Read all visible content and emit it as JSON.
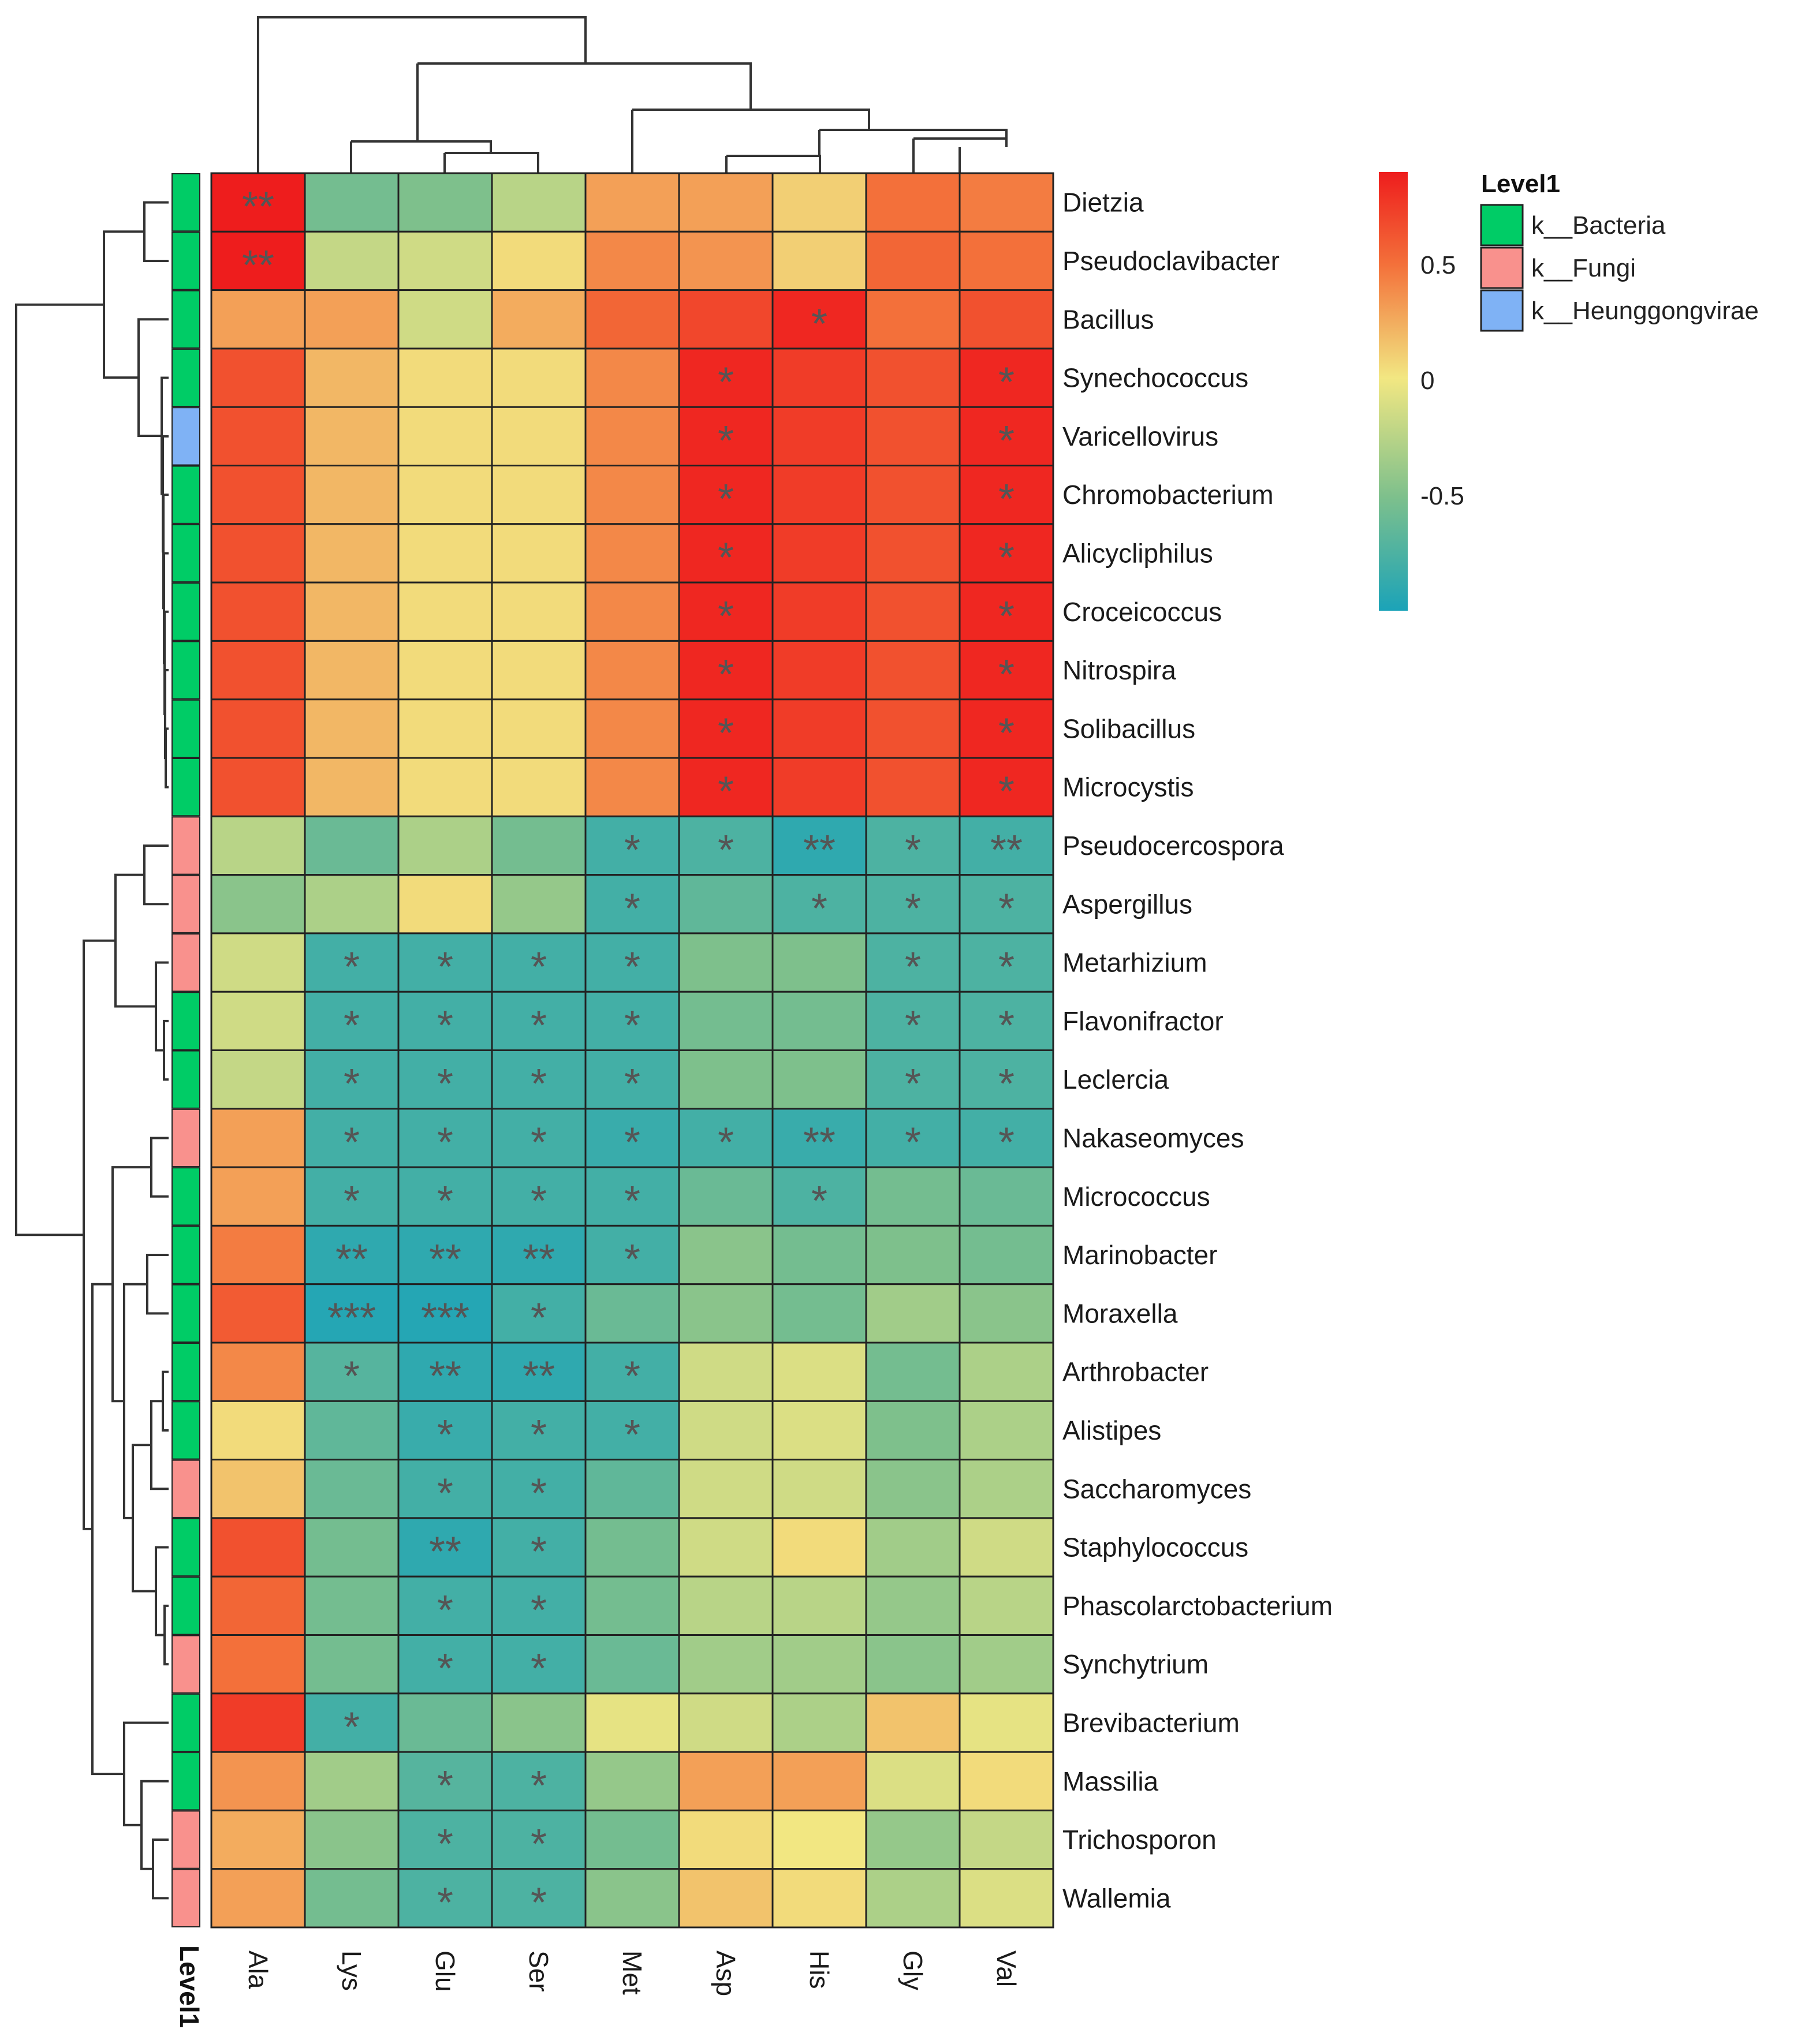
{
  "chart_data": {
    "type": "heatmap",
    "columns": [
      "Ala",
      "Lys",
      "Glu",
      "Ser",
      "Met",
      "Asp",
      "His",
      "Gly",
      "Val"
    ],
    "rows": [
      {
        "name": "Dietzia",
        "level": "k__Bacteria",
        "values": [
          0.9,
          -0.55,
          -0.5,
          -0.25,
          0.3,
          0.3,
          0.1,
          0.5,
          0.45
        ],
        "sig": [
          "**",
          "",
          "",
          "",
          "",
          "",
          "",
          "",
          ""
        ]
      },
      {
        "name": "Pseudoclavibacter",
        "level": "k__Bacteria",
        "values": [
          0.9,
          -0.2,
          -0.15,
          0.05,
          0.4,
          0.35,
          0.1,
          0.55,
          0.5
        ],
        "sig": [
          "**",
          "",
          "",
          "",
          "",
          "",
          "",
          "",
          ""
        ]
      },
      {
        "name": "Bacillus",
        "level": "k__Bacteria",
        "values": [
          0.3,
          0.3,
          -0.15,
          0.25,
          0.55,
          0.7,
          0.85,
          0.5,
          0.65
        ],
        "sig": [
          "",
          "",
          "",
          "",
          "",
          "",
          "*",
          "",
          ""
        ]
      },
      {
        "name": "Synechococcus",
        "level": "k__Bacteria",
        "values": [
          0.65,
          0.2,
          0.05,
          0.05,
          0.4,
          0.85,
          0.75,
          0.65,
          0.85
        ],
        "sig": [
          "",
          "",
          "",
          "",
          "",
          "*",
          "",
          "",
          "*"
        ]
      },
      {
        "name": "Varicellovirus",
        "level": "k__Heunggongvirae",
        "values": [
          0.65,
          0.2,
          0.05,
          0.05,
          0.4,
          0.85,
          0.75,
          0.65,
          0.85
        ],
        "sig": [
          "",
          "",
          "",
          "",
          "",
          "*",
          "",
          "",
          "*"
        ]
      },
      {
        "name": "Chromobacterium",
        "level": "k__Bacteria",
        "values": [
          0.65,
          0.2,
          0.05,
          0.05,
          0.4,
          0.85,
          0.75,
          0.65,
          0.85
        ],
        "sig": [
          "",
          "",
          "",
          "",
          "",
          "*",
          "",
          "",
          "*"
        ]
      },
      {
        "name": "Alicycliphilus",
        "level": "k__Bacteria",
        "values": [
          0.65,
          0.2,
          0.05,
          0.05,
          0.4,
          0.85,
          0.75,
          0.65,
          0.85
        ],
        "sig": [
          "",
          "",
          "",
          "",
          "",
          "*",
          "",
          "",
          "*"
        ]
      },
      {
        "name": "Croceicoccus",
        "level": "k__Bacteria",
        "values": [
          0.65,
          0.2,
          0.05,
          0.05,
          0.4,
          0.85,
          0.75,
          0.65,
          0.85
        ],
        "sig": [
          "",
          "",
          "",
          "",
          "",
          "*",
          "",
          "",
          "*"
        ]
      },
      {
        "name": "Nitrospira",
        "level": "k__Bacteria",
        "values": [
          0.65,
          0.2,
          0.05,
          0.05,
          0.4,
          0.85,
          0.75,
          0.65,
          0.85
        ],
        "sig": [
          "",
          "",
          "",
          "",
          "",
          "*",
          "",
          "",
          "*"
        ]
      },
      {
        "name": "Solibacillus",
        "level": "k__Bacteria",
        "values": [
          0.65,
          0.2,
          0.05,
          0.05,
          0.4,
          0.85,
          0.75,
          0.65,
          0.85
        ],
        "sig": [
          "",
          "",
          "",
          "",
          "",
          "*",
          "",
          "",
          "*"
        ]
      },
      {
        "name": "Microcystis",
        "level": "k__Bacteria",
        "values": [
          0.65,
          0.2,
          0.05,
          0.05,
          0.4,
          0.85,
          0.75,
          0.65,
          0.85
        ],
        "sig": [
          "",
          "",
          "",
          "",
          "",
          "*",
          "",
          "",
          "*"
        ]
      },
      {
        "name": "Pseudocercospora",
        "level": "k__Fungi",
        "values": [
          -0.25,
          -0.6,
          -0.3,
          -0.55,
          -0.8,
          -0.75,
          -0.9,
          -0.75,
          -0.8
        ],
        "sig": [
          "",
          "",
          "",
          "",
          "*",
          "*",
          "**",
          "*",
          "**"
        ]
      },
      {
        "name": "Aspergillus",
        "level": "k__Fungi",
        "values": [
          -0.45,
          -0.3,
          0.05,
          -0.4,
          -0.8,
          -0.65,
          -0.75,
          -0.75,
          -0.75
        ],
        "sig": [
          "",
          "",
          "",
          "",
          "*",
          "",
          "*",
          "*",
          "*"
        ]
      },
      {
        "name": "Metarhizium",
        "level": "k__Fungi",
        "values": [
          -0.15,
          -0.8,
          -0.8,
          -0.8,
          -0.8,
          -0.5,
          -0.5,
          -0.75,
          -0.75
        ],
        "sig": [
          "",
          "*",
          "*",
          "*",
          "*",
          "",
          "",
          "*",
          "*"
        ]
      },
      {
        "name": "Flavonifractor",
        "level": "k__Bacteria",
        "values": [
          -0.15,
          -0.8,
          -0.8,
          -0.8,
          -0.8,
          -0.55,
          -0.55,
          -0.75,
          -0.75
        ],
        "sig": [
          "",
          "*",
          "*",
          "*",
          "*",
          "",
          "",
          "*",
          "*"
        ]
      },
      {
        "name": "Leclercia",
        "level": "k__Bacteria",
        "values": [
          -0.2,
          -0.8,
          -0.8,
          -0.8,
          -0.8,
          -0.5,
          -0.5,
          -0.75,
          -0.75
        ],
        "sig": [
          "",
          "*",
          "*",
          "*",
          "*",
          "",
          "",
          "*",
          "*"
        ]
      },
      {
        "name": "Nakaseomyces",
        "level": "k__Fungi",
        "values": [
          0.3,
          -0.8,
          -0.8,
          -0.8,
          -0.85,
          -0.8,
          -0.85,
          -0.8,
          -0.8
        ],
        "sig": [
          "",
          "*",
          "*",
          "*",
          "*",
          "*",
          "**",
          "*",
          "*"
        ]
      },
      {
        "name": "Micrococcus",
        "level": "k__Bacteria",
        "values": [
          0.3,
          -0.8,
          -0.8,
          -0.8,
          -0.8,
          -0.6,
          -0.75,
          -0.55,
          -0.6
        ],
        "sig": [
          "",
          "*",
          "*",
          "*",
          "*",
          "",
          "*",
          "",
          ""
        ]
      },
      {
        "name": "Marinobacter",
        "level": "k__Bacteria",
        "values": [
          0.45,
          -0.9,
          -0.9,
          -0.9,
          -0.8,
          -0.45,
          -0.55,
          -0.5,
          -0.55
        ],
        "sig": [
          "",
          "**",
          "**",
          "**",
          "*",
          "",
          "",
          "",
          ""
        ]
      },
      {
        "name": "Moraxella",
        "level": "k__Bacteria",
        "values": [
          0.6,
          -0.95,
          -0.95,
          -0.8,
          -0.6,
          -0.45,
          -0.55,
          -0.35,
          -0.45
        ],
        "sig": [
          "",
          "***",
          "***",
          "*",
          "",
          "",
          "",
          "",
          ""
        ]
      },
      {
        "name": "Arthrobacter",
        "level": "k__Bacteria",
        "values": [
          0.4,
          -0.7,
          -0.9,
          -0.9,
          -0.8,
          -0.15,
          -0.1,
          -0.55,
          -0.3
        ],
        "sig": [
          "",
          "*",
          "**",
          "**",
          "*",
          "",
          "",
          "",
          ""
        ]
      },
      {
        "name": "Alistipes",
        "level": "k__Bacteria",
        "values": [
          0.05,
          -0.65,
          -0.85,
          -0.8,
          -0.8,
          -0.15,
          -0.1,
          -0.5,
          -0.3
        ],
        "sig": [
          "",
          "",
          "*",
          "*",
          "*",
          "",
          "",
          "",
          ""
        ]
      },
      {
        "name": "Saccharomyces",
        "level": "k__Fungi",
        "values": [
          0.15,
          -0.6,
          -0.8,
          -0.8,
          -0.65,
          -0.15,
          -0.15,
          -0.45,
          -0.3
        ],
        "sig": [
          "",
          "",
          "*",
          "*",
          "",
          "",
          "",
          "",
          ""
        ]
      },
      {
        "name": "Staphylococcus",
        "level": "k__Bacteria",
        "values": [
          0.65,
          -0.55,
          -0.9,
          -0.8,
          -0.55,
          -0.15,
          0.05,
          -0.35,
          -0.15
        ],
        "sig": [
          "",
          "",
          "**",
          "*",
          "",
          "",
          "",
          "",
          ""
        ]
      },
      {
        "name": "Phascolarctobacterium",
        "level": "k__Bacteria",
        "values": [
          0.55,
          -0.55,
          -0.8,
          -0.8,
          -0.55,
          -0.25,
          -0.25,
          -0.4,
          -0.25
        ],
        "sig": [
          "",
          "",
          "*",
          "*",
          "",
          "",
          "",
          "",
          ""
        ]
      },
      {
        "name": "Synchytrium",
        "level": "k__Fungi",
        "values": [
          0.5,
          -0.55,
          -0.8,
          -0.8,
          -0.6,
          -0.35,
          -0.35,
          -0.45,
          -0.35
        ],
        "sig": [
          "",
          "",
          "*",
          "*",
          "",
          "",
          "",
          "",
          ""
        ]
      },
      {
        "name": "Brevibacterium",
        "level": "k__Bacteria",
        "values": [
          0.75,
          -0.8,
          -0.6,
          -0.45,
          -0.05,
          -0.15,
          -0.3,
          0.15,
          -0.05
        ],
        "sig": [
          "",
          "*",
          "",
          "",
          "",
          "",
          "",
          "",
          ""
        ]
      },
      {
        "name": "Massilia",
        "level": "k__Bacteria",
        "values": [
          0.35,
          -0.35,
          -0.7,
          -0.75,
          -0.4,
          0.3,
          0.3,
          -0.1,
          0.05
        ],
        "sig": [
          "",
          "",
          "*",
          "*",
          "",
          "",
          "",
          "",
          ""
        ]
      },
      {
        "name": "Trichosporon",
        "level": "k__Fungi",
        "values": [
          0.25,
          -0.45,
          -0.75,
          -0.75,
          -0.55,
          0.05,
          0.0,
          -0.4,
          -0.2
        ],
        "sig": [
          "",
          "",
          "*",
          "*",
          "",
          "",
          "",
          "",
          ""
        ]
      },
      {
        "name": "Wallemia",
        "level": "k__Fungi",
        "values": [
          0.3,
          -0.55,
          -0.75,
          -0.75,
          -0.45,
          0.15,
          0.05,
          -0.3,
          -0.1
        ],
        "sig": [
          "",
          "",
          "*",
          "*",
          "",
          "",
          "",
          "",
          ""
        ]
      }
    ],
    "color_scale": {
      "min": -1,
      "max": 0.9,
      "stops": [
        {
          "value": -1.0,
          "color": "#1ba3b8"
        },
        {
          "value": -0.5,
          "color": "#7ec08c"
        },
        {
          "value": 0.0,
          "color": "#f2e782"
        },
        {
          "value": 0.5,
          "color": "#f3703a"
        },
        {
          "value": 0.9,
          "color": "#ee1d1d"
        }
      ],
      "ticks": [
        0.5,
        0,
        -0.5
      ],
      "tick_labels": [
        "0.5",
        "0",
        "-0.5"
      ]
    },
    "annotation": {
      "title": "Level1",
      "axis_label": "Level1",
      "categories": [
        {
          "label": "k__Bacteria",
          "color": "#00cc66"
        },
        {
          "label": "k__Fungi",
          "color": "#f9918d"
        },
        {
          "label": "k__Heunggongvirae",
          "color": "#7fb2f5"
        }
      ]
    },
    "row_dendrogram": "hierarchical clustering of rows",
    "column_dendrogram": "hierarchical clustering of columns"
  }
}
